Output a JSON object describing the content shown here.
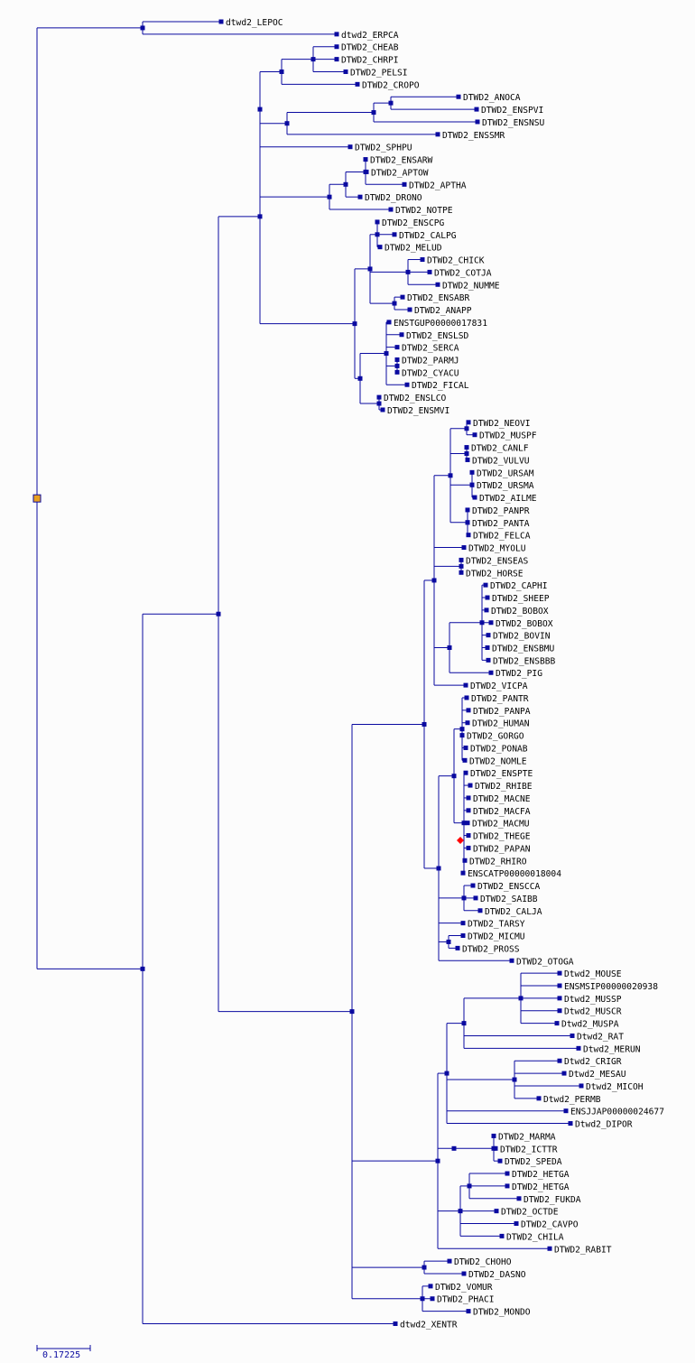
{
  "colors": {
    "branch": "#0a0aa0",
    "node": "#0a0aa0",
    "root_marker": "#e8a020",
    "highlight_node": "#ff0000",
    "label": "#000000",
    "background": "#fcfcfc"
  },
  "scale_bar": {
    "label": "0.17225"
  },
  "leaves": [
    "dtwd2_LEPOC",
    "dtwd2_ERPCA",
    "DTWD2_CHEAB",
    "DTWD2_CHRPI",
    "DTWD2_PELSI",
    "DTWD2_CROPO",
    "DTWD2_ANOCA",
    "DTWD2_ENSPVI",
    "DTWD2_ENSNSU",
    "DTWD2_ENSSMR",
    "DTWD2_SPHPU",
    "DTWD2_ENSARW",
    "DTWD2_APTOW",
    "DTWD2_APTHA",
    "DTWD2_DRONO",
    "DTWD2_NOTPE",
    "DTWD2_ENSCPG",
    "DTWD2_CALPG",
    "DTWD2_MELUD",
    "DTWD2_CHICK",
    "DTWD2_COTJA",
    "DTWD2_NUMME",
    "DTWD2_ENSABR",
    "DTWD2_ANAPP",
    "ENSTGUP00000017831",
    "DTWD2_ENSLSD",
    "DTWD2_SERCA",
    "DTWD2_PARMJ",
    "DTWD2_CYACU",
    "DTWD2_FICAL",
    "DTWD2_ENSLCO",
    "DTWD2_ENSMVI",
    "DTWD2_NEOVI",
    "DTWD2_MUSPF",
    "DTWD2_CANLF",
    "DTWD2_VULVU",
    "DTWD2_URSAM",
    "DTWD2_URSMA",
    "DTWD2_AILME",
    "DTWD2_PANPR",
    "DTWD2_PANTA",
    "DTWD2_FELCA",
    "DTWD2_MYOLU",
    "DTWD2_ENSEAS",
    "DTWD2_HORSE",
    "DTWD2_CAPHI",
    "DTWD2_SHEEP",
    "DTWD2_BOBOX",
    "DTWD2_BOBOX",
    "DTWD2_BOVIN",
    "DTWD2_ENSBMU",
    "DTWD2_ENSBBB",
    "DTWD2_PIG",
    "DTWD2_VICPA",
    "DTWD2_PANTR",
    "DTWD2_PANPA",
    "DTWD2_HUMAN",
    "DTWD2_GORGO",
    "DTWD2_PONAB",
    "DTWD2_NOMLE",
    "DTWD2_ENSPTE",
    "DTWD2_RHIBE",
    "DTWD2_MACNE",
    "DTWD2_MACFA",
    "DTWD2_MACMU",
    "DTWD2_THEGE",
    "DTWD2_PAPAN",
    "DTWD2_RHIRO",
    "ENSCATP00000018004",
    "DTWD2_ENSCCA",
    "DTWD2_SAIBB",
    "DTWD2_CALJA",
    "DTWD2_TARSY",
    "DTWD2_MICMU",
    "DTWD2_PROSS",
    "DTWD2_OTOGA",
    "Dtwd2_MOUSE",
    "ENSMSIP00000020938",
    "Dtwd2_MUSSP",
    "Dtwd2_MUSCR",
    "Dtwd2_MUSPA",
    "Dtwd2_RAT",
    "Dtwd2_MERUN",
    "Dtwd2_CRIGR",
    "Dtwd2_MESAU",
    "Dtwd2_MICOH",
    "Dtwd2_PERMB",
    "ENSJJAP00000024677",
    "Dtwd2_DIPOR",
    "DTWD2_MARMA",
    "DTWD2_ICTTR",
    "DTWD2_SPEDA",
    "DTWD2_HETGA",
    "DTWD2_HETGA",
    "DTWD2_FUKDA",
    "DTWD2_OCTDE",
    "DTWD2_CAVPO",
    "DTWD2_CHILA",
    "DTWD2_RABIT",
    "DTWD2_CHOHO",
    "DTWD2_DASNO",
    "DTWD2_VOMUR",
    "DTWD2_PHACI",
    "DTWD2_MONDO",
    "dtwd2_XENTR"
  ]
}
